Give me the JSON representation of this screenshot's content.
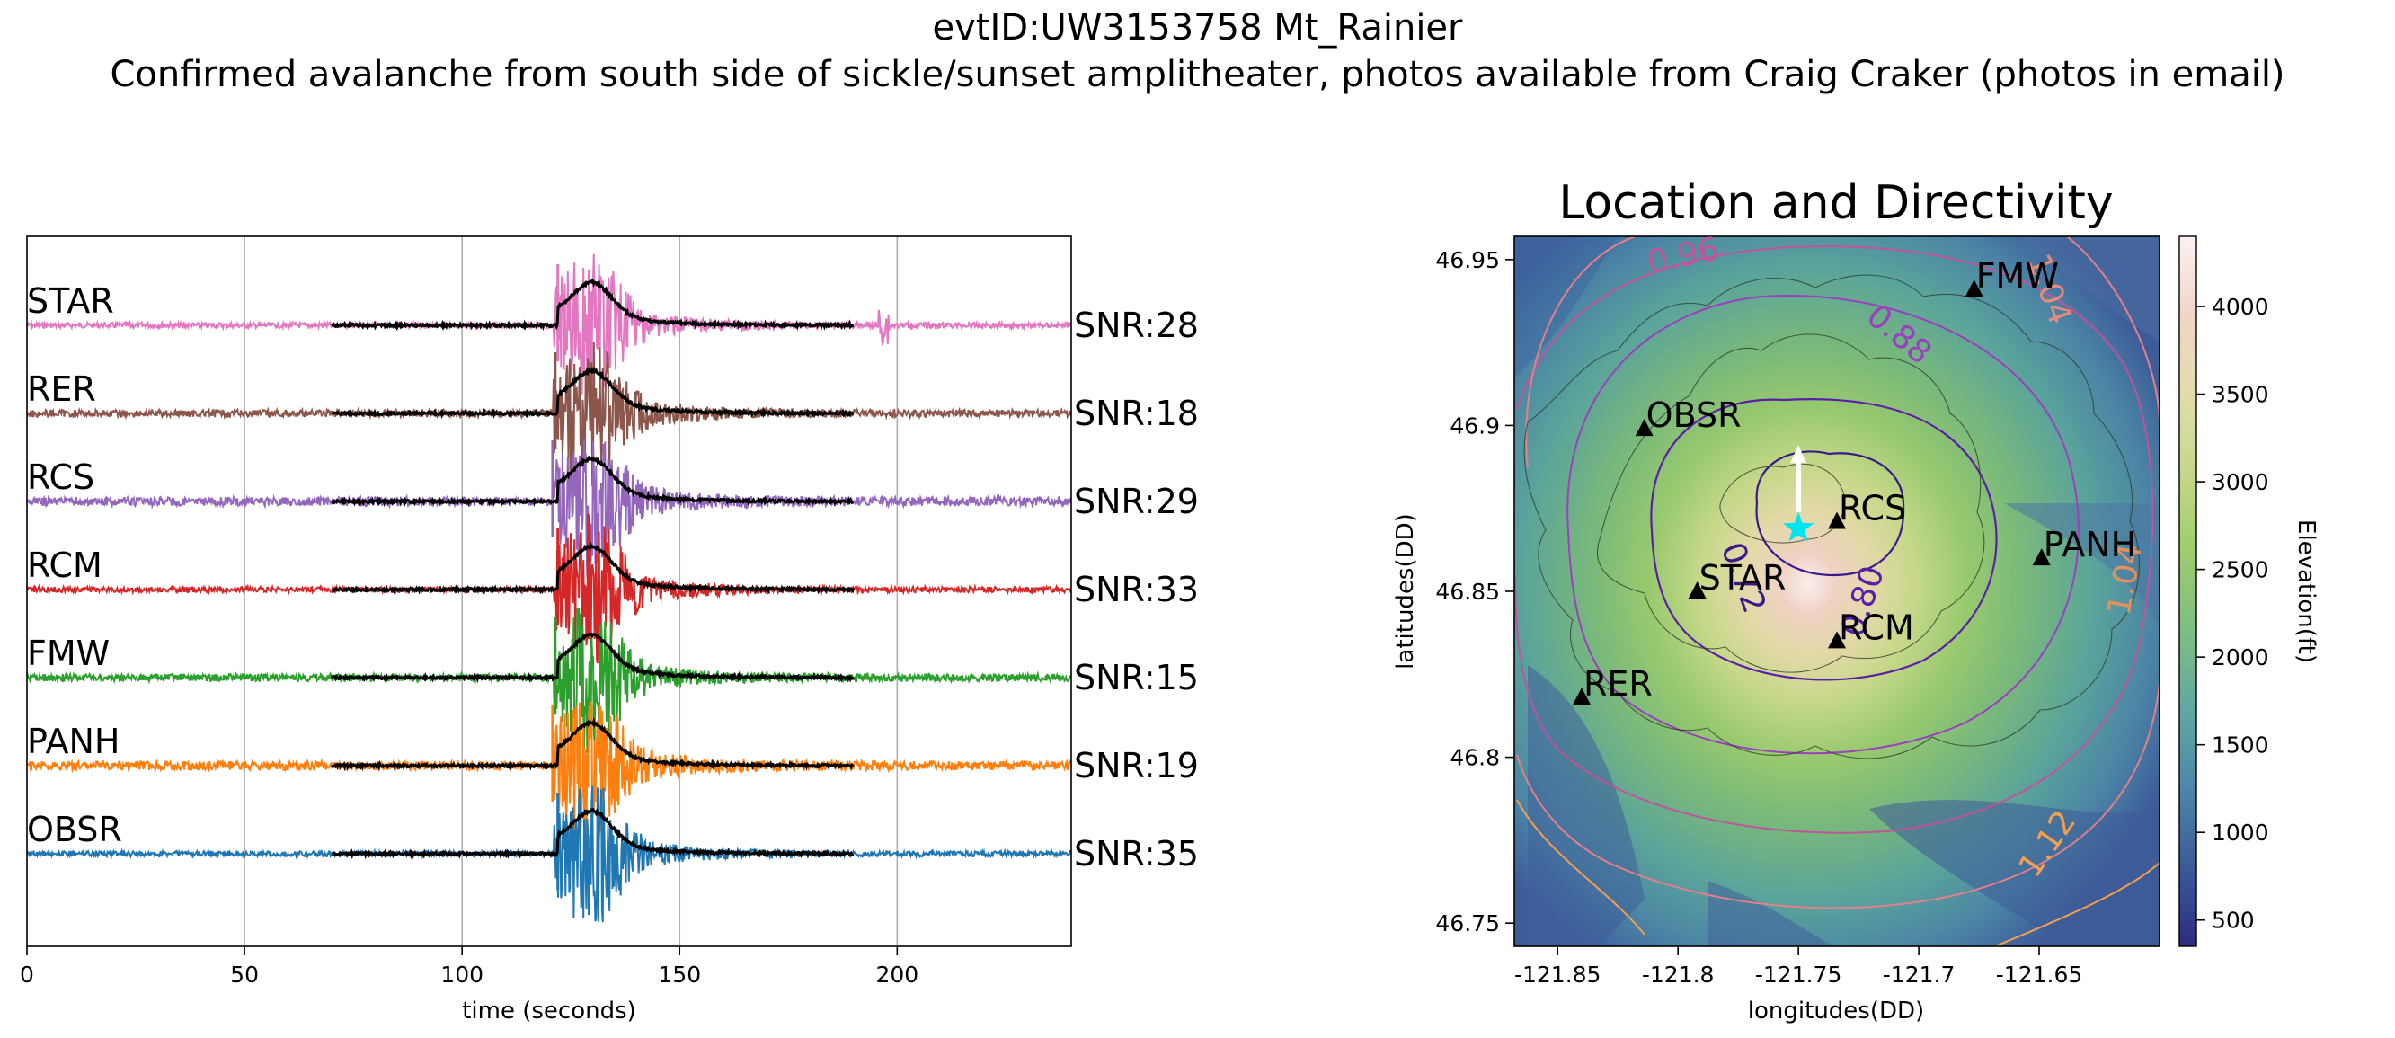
{
  "suptitle": {
    "line1": "evtID:UW3153758 Mt_Rainier",
    "line2": "Confirmed avalanche from south side of sickle/sunset amplitheater, photos available from Craig Craker (photos in email)"
  },
  "chart_data": [
    {
      "type": "line",
      "xlabel": "time (seconds)",
      "xlim": [
        0,
        240
      ],
      "xticks": [
        0,
        50,
        100,
        150,
        200
      ],
      "grid": "x",
      "traces": [
        {
          "name": "STAR",
          "snr_label": "SNR:28",
          "color": "#e377c2",
          "offset": 6
        },
        {
          "name": "RER",
          "snr_label": "SNR:18",
          "color": "#8c564b",
          "offset": 5
        },
        {
          "name": "RCS",
          "snr_label": "SNR:29",
          "color": "#9467bd",
          "offset": 4
        },
        {
          "name": "RCM",
          "snr_label": "SNR:33",
          "color": "#d62728",
          "offset": 3
        },
        {
          "name": "FMW",
          "snr_label": "SNR:15",
          "color": "#2ca02c",
          "offset": 2
        },
        {
          "name": "PANH",
          "snr_label": "SNR:19",
          "color": "#ff7f0e",
          "offset": 1
        },
        {
          "name": "OBSR",
          "snr_label": "SNR:35",
          "color": "#1f77b4",
          "offset": 0
        }
      ],
      "envelope_window": [
        70,
        190
      ],
      "onset_time": 122,
      "peak_time": 130
    },
    {
      "type": "map",
      "title": "Location and Directivity",
      "xlabel": "longitudes(DD)",
      "ylabel": "latitudes(DD)",
      "xlim": [
        -121.868,
        -121.6
      ],
      "ylim": [
        46.743,
        46.957
      ],
      "xticks": [
        -121.85,
        -121.8,
        -121.75,
        -121.7,
        -121.65
      ],
      "xticklabels": [
        "-121.85",
        "-121.8",
        "-121.75",
        "-121.7",
        "-121.65"
      ],
      "yticks": [
        46.75,
        46.8,
        46.85,
        46.9,
        46.95
      ],
      "yticklabels": [
        "46.75",
        "46.8",
        "46.85",
        "46.9",
        "46.95"
      ],
      "stations": [
        {
          "name": "FMW",
          "lon": -121.677,
          "lat": 46.941
        },
        {
          "name": "OBSR",
          "lon": -121.814,
          "lat": 46.899
        },
        {
          "name": "RCS",
          "lon": -121.734,
          "lat": 46.871
        },
        {
          "name": "PANH",
          "lon": -121.649,
          "lat": 46.86
        },
        {
          "name": "STAR",
          "lon": -121.792,
          "lat": 46.85
        },
        {
          "name": "RCM",
          "lon": -121.734,
          "lat": 46.835
        },
        {
          "name": "RER",
          "lon": -121.84,
          "lat": 46.818
        }
      ],
      "source": {
        "lon": -121.75,
        "lat": 46.869
      },
      "direction_arrow": {
        "lon": -121.75,
        "lat": 46.893
      },
      "contour_labels": [
        {
          "text": "0.96",
          "lon": -121.797,
          "lat": 46.948,
          "color": "#c0549a",
          "rotate": -12
        },
        {
          "text": "0.88",
          "lon": -121.711,
          "lat": 46.925,
          "color": "#9a3fbf",
          "rotate": 40
        },
        {
          "text": "1.04",
          "lon": -121.65,
          "lat": 46.94,
          "color": "#e38a7a",
          "rotate": 70
        },
        {
          "text": "0.80",
          "lon": -121.719,
          "lat": 46.846,
          "color": "#5a1fa8",
          "rotate": -72
        },
        {
          "text": "0.72",
          "lon": -121.777,
          "lat": 46.853,
          "color": "#3a1a8a",
          "rotate": 70
        },
        {
          "text": "1.04",
          "lon": -121.61,
          "lat": 46.853,
          "color": "#e39060",
          "rotate": -80
        },
        {
          "text": "1.12",
          "lon": -121.643,
          "lat": 46.772,
          "color": "#f0a050",
          "rotate": -55
        }
      ],
      "colorbar": {
        "label": "Elevation(ft)",
        "range": [
          350,
          4400
        ],
        "ticks": [
          500,
          1000,
          1500,
          2000,
          2500,
          3000,
          3500,
          4000
        ],
        "colormap": [
          "#2c2d7e",
          "#3c5998",
          "#4d86a8",
          "#5ea8a1",
          "#7dbd84",
          "#9ecd6c",
          "#c6d88a",
          "#e3ddae",
          "#f0d6c8",
          "#fbf2f0"
        ]
      }
    }
  ]
}
